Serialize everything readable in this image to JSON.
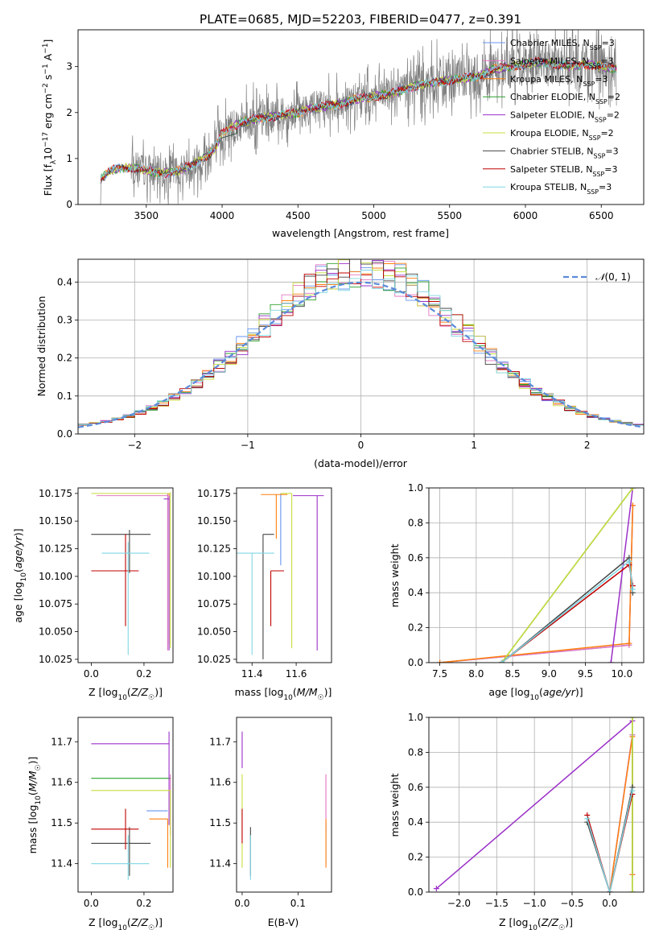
{
  "figure_title": "PLATE=0685, MJD=52203, FIBERID=0477, z=0.391",
  "series_styles": [
    {
      "name": "Chabrier MILES, N_SSP=3",
      "color": "#6495ed"
    },
    {
      "name": "Salpeter MILES, N_SSP=3",
      "color": "#e377c2"
    },
    {
      "name": "Kroupa MILES, N_SSP=3",
      "color": "#ff7f0e"
    },
    {
      "name": "Chabrier ELODIE, N_SSP=2",
      "color": "#2ca02c"
    },
    {
      "name": "Salpeter ELODIE, N_SSP=2",
      "color": "#9b30c8"
    },
    {
      "name": "Kroupa ELODIE, N_SSP=2",
      "color": "#c8dc3c"
    },
    {
      "name": "Chabrier STELIB, N_SSP=3",
      "color": "#444444"
    },
    {
      "name": "Salpeter STELIB, N_SSP=3",
      "color": "#c00000"
    },
    {
      "name": "Kroupa STELIB, N_SSP=3",
      "color": "#7fd6e3"
    }
  ],
  "chart_data": [
    {
      "id": "spectrum",
      "type": "line",
      "title": "PLATE=0685, MJD=52203, FIBERID=0477, z=0.391",
      "xlabel": "wavelength [Angstrom, rest frame]",
      "ylabel": "Flux [f_λ 10^-17 erg cm^-2 s^-1 A^-1]",
      "xlim": [
        3050,
        6780
      ],
      "ylim": [
        0,
        3.8
      ],
      "xticks": [
        3500,
        4000,
        4500,
        5000,
        5500,
        6000,
        6500
      ],
      "yticks": [
        0,
        1,
        2,
        3
      ],
      "legend_position": "top-right",
      "legend": [
        "Chabrier MILES, N_SSP=3",
        "Salpeter MILES, N_SSP=3",
        "Kroupa MILES, N_SSP=3",
        "Chabrier ELODIE, N_SSP=2",
        "Salpeter ELODIE, N_SSP=2",
        "Kroupa ELODIE, N_SSP=2",
        "Chabrier STELIB, N_SSP=3",
        "Salpeter STELIB, N_SSP=3",
        "Kroupa STELIB, N_SSP=3"
      ],
      "data_series": {
        "name": "data",
        "color": "#808080"
      },
      "model_continuum": {
        "x": [
          3200,
          3250,
          3300,
          3400,
          3500,
          3600,
          3700,
          3800,
          3850,
          3900,
          3950,
          4000,
          4100,
          4200,
          4300,
          4400,
          4500,
          4600,
          4700,
          4800,
          4900,
          5000,
          5100,
          5200,
          5300,
          5400,
          5500,
          5600,
          5700,
          5800,
          5900,
          6000,
          6100,
          6200,
          6300,
          6400,
          6500,
          6600
        ],
        "y": [
          0.55,
          0.7,
          0.78,
          0.8,
          0.75,
          0.68,
          0.72,
          0.85,
          0.95,
          1.05,
          1.2,
          1.55,
          1.75,
          1.85,
          1.9,
          1.95,
          2.0,
          2.1,
          2.15,
          2.2,
          2.3,
          2.35,
          2.4,
          2.5,
          2.6,
          2.65,
          2.7,
          2.75,
          2.8,
          2.95,
          3.0,
          3.05,
          3.1,
          3.05,
          3.0,
          3.05,
          3.0,
          2.95
        ]
      }
    },
    {
      "id": "residuals",
      "type": "line",
      "xlabel": "(data-model)/error",
      "ylabel": "Normed distribution",
      "xlim": [
        -2.5,
        2.5
      ],
      "ylim": [
        0,
        0.46
      ],
      "xticks": [
        -2,
        -1,
        0,
        1,
        2
      ],
      "yticks": [
        0.0,
        0.1,
        0.2,
        0.3,
        0.4
      ],
      "grid": true,
      "legend_position": "top-right",
      "legend": [
        "N(0,1)"
      ],
      "normal_curve": {
        "name": "N(0,1)",
        "mean": 0,
        "sigma": 1,
        "style": "dashed"
      },
      "histogram": {
        "bin_width": 0.1,
        "bin_start": -2.5,
        "shape_sigma": 1.0,
        "peak": 0.42
      }
    },
    {
      "id": "age-vs-Z",
      "type": "scatter",
      "xlabel": "Z [log10(Z/Z☉)]",
      "ylabel": "age  [log10(age/yr)]",
      "xlim": [
        -0.05,
        0.31
      ],
      "ylim": [
        10.022,
        10.18
      ],
      "xticks": [
        0.0,
        0.2
      ],
      "yticks": [
        10.025,
        10.05,
        10.075,
        10.1,
        10.125,
        10.15,
        10.175
      ],
      "points": [
        {
          "series": "Chabrier MILES, N_SSP=3",
          "x": 0.29,
          "y": 10.172,
          "xerr": [
            0.0,
            0.0
          ],
          "yerr": [
            0.138,
            0.002
          ]
        },
        {
          "series": "Salpeter MILES, N_SSP=3",
          "x": 0.29,
          "y": 10.173,
          "xerr": [
            0.27,
            0.0
          ],
          "yerr": [
            0.14,
            0.002
          ]
        },
        {
          "series": "Kroupa MILES, N_SSP=3",
          "x": 0.295,
          "y": 10.174,
          "xerr": [
            0.0,
            0.0
          ],
          "yerr": [
            0.135,
            0.001
          ]
        },
        {
          "series": "Chabrier ELODIE, N_SSP=2",
          "x": 0.3,
          "y": 10.175,
          "xerr": [
            0.0,
            0.0
          ],
          "yerr": [
            0.0,
            0.0
          ]
        },
        {
          "series": "Salpeter ELODIE, N_SSP=2",
          "x": 0.295,
          "y": 10.17,
          "xerr": [
            0.02,
            0.0
          ],
          "yerr": [
            0.137,
            0.003
          ]
        },
        {
          "series": "Kroupa ELODIE, N_SSP=2",
          "x": 0.3,
          "y": 10.175,
          "xerr": [
            0.3,
            0.0
          ],
          "yerr": [
            0.14,
            0.001
          ]
        },
        {
          "series": "Chabrier STELIB, N_SSP=3",
          "x": 0.145,
          "y": 10.138,
          "xerr": [
            0.145,
            0.08
          ],
          "yerr": [
            0.035,
            0.004
          ]
        },
        {
          "series": "Salpeter STELIB, N_SSP=3",
          "x": 0.13,
          "y": 10.105,
          "xerr": [
            0.13,
            0.05
          ],
          "yerr": [
            0.05,
            0.033
          ]
        },
        {
          "series": "Kroupa STELIB, N_SSP=3",
          "x": 0.14,
          "y": 10.121,
          "xerr": [
            0.1,
            0.08
          ],
          "yerr": [
            0.092,
            0.01
          ]
        }
      ]
    },
    {
      "id": "age-vs-mass",
      "type": "scatter",
      "xlabel": "mass [log10(M/M☉)]",
      "xlim": [
        11.33,
        11.76
      ],
      "ylim": [
        10.022,
        10.18
      ],
      "xticks": [
        11.4,
        11.6
      ],
      "yticks": [
        10.025,
        10.05,
        10.075,
        10.1,
        10.125,
        10.15,
        10.175
      ],
      "points": [
        {
          "series": "Chabrier MILES, N_SSP=3",
          "x": 11.53,
          "y": 10.11,
          "xerr": [
            0.0,
            0.0
          ],
          "yerr": [
            0.0,
            0.065
          ]
        },
        {
          "series": "Salpeter MILES, N_SSP=3",
          "x": 11.64,
          "y": 10.173,
          "xerr": [
            0.0,
            0.0
          ],
          "yerr": [
            0.0,
            0.0
          ]
        },
        {
          "series": "Kroupa MILES, N_SSP=3",
          "x": 11.51,
          "y": 10.174,
          "xerr": [
            0.07,
            0.05
          ],
          "yerr": [
            0.04,
            0.0
          ]
        },
        {
          "series": "Chabrier ELODIE, N_SSP=2",
          "x": 11.6,
          "y": 10.175,
          "xerr": [
            0.0,
            0.0
          ],
          "yerr": [
            0.0,
            0.0
          ]
        },
        {
          "series": "Salpeter ELODIE, N_SSP=2",
          "x": 11.695,
          "y": 10.173,
          "xerr": [
            0.11,
            0.03
          ],
          "yerr": [
            0.14,
            0.0
          ]
        },
        {
          "series": "Kroupa ELODIE, N_SSP=2",
          "x": 11.58,
          "y": 10.175,
          "xerr": [
            0.05,
            0.0
          ],
          "yerr": [
            0.14,
            0.0
          ]
        },
        {
          "series": "Chabrier STELIB, N_SSP=3",
          "x": 11.45,
          "y": 10.138,
          "xerr": [
            0.0,
            0.05
          ],
          "yerr": [
            0.113,
            0.0
          ]
        },
        {
          "series": "Salpeter STELIB, N_SSP=3",
          "x": 11.485,
          "y": 10.105,
          "xerr": [
            0.0,
            0.06
          ],
          "yerr": [
            0.05,
            0.0
          ]
        },
        {
          "series": "Kroupa STELIB, N_SSP=3",
          "x": 11.4,
          "y": 10.121,
          "xerr": [
            0.1,
            0.1
          ],
          "yerr": [
            0.092,
            0.0
          ]
        }
      ]
    },
    {
      "id": "mass-weight-vs-age",
      "type": "line",
      "xlabel": "age  [log10(age/yr)]",
      "ylabel": "mass weight",
      "xlim": [
        7.35,
        10.3
      ],
      "ylim": [
        0,
        1
      ],
      "xticks": [
        7.5,
        8.0,
        8.5,
        9.0,
        9.5,
        10.0
      ],
      "yticks": [
        0.0,
        0.2,
        0.4,
        0.6,
        0.8,
        1.0
      ],
      "grid": true,
      "series": [
        {
          "name": "Chabrier MILES, N_SSP=3",
          "x": [
            7.5,
            10.1,
            10.15
          ],
          "y": [
            0.0,
            0.1,
            0.9
          ]
        },
        {
          "name": "Salpeter MILES, N_SSP=3",
          "x": [
            7.5,
            10.1,
            10.15
          ],
          "y": [
            0.0,
            0.1,
            0.9
          ]
        },
        {
          "name": "Kroupa MILES, N_SSP=3",
          "x": [
            7.5,
            10.1,
            10.15
          ],
          "y": [
            0.0,
            0.11,
            0.9
          ]
        },
        {
          "name": "Chabrier ELODIE, N_SSP=2",
          "x": [
            8.35,
            10.15
          ],
          "y": [
            0.0,
            1.0
          ]
        },
        {
          "name": "Salpeter ELODIE, N_SSP=2",
          "x": [
            9.85,
            10.15
          ],
          "y": [
            0.0,
            1.0
          ]
        },
        {
          "name": "Kroupa ELODIE, N_SSP=2",
          "x": [
            8.35,
            10.15
          ],
          "y": [
            0.0,
            1.0
          ]
        },
        {
          "name": "Chabrier STELIB, N_SSP=3",
          "x": [
            8.35,
            10.1,
            10.15
          ],
          "y": [
            0.0,
            0.6,
            0.4
          ]
        },
        {
          "name": "Salpeter STELIB, N_SSP=3",
          "x": [
            8.35,
            10.1,
            10.15
          ],
          "y": [
            0.0,
            0.56,
            0.44
          ]
        },
        {
          "name": "Kroupa STELIB, N_SSP=3",
          "x": [
            8.35,
            10.1,
            10.15
          ],
          "y": [
            0.0,
            0.58,
            0.42
          ]
        }
      ]
    },
    {
      "id": "mass-vs-Z",
      "type": "scatter",
      "xlabel": "Z [log10(Z/Z☉)]",
      "ylabel": "mass [log10(M/M☉)]",
      "xlim": [
        -0.05,
        0.31
      ],
      "ylim": [
        11.33,
        11.76
      ],
      "xticks": [
        0.0,
        0.2
      ],
      "yticks": [
        11.4,
        11.5,
        11.6,
        11.7
      ],
      "points": [
        {
          "series": "Chabrier MILES, N_SSP=3",
          "x": 0.29,
          "y": 11.53,
          "xerr": [
            0.08,
            0.0
          ],
          "yerr": [
            0.0,
            0.0
          ]
        },
        {
          "series": "Salpeter MILES, N_SSP=3",
          "x": 0.3,
          "y": 11.5,
          "xerr": [
            0.0,
            0.0
          ],
          "yerr": [
            0.03,
            0.12
          ]
        },
        {
          "series": "Kroupa MILES, N_SSP=3",
          "x": 0.29,
          "y": 11.51,
          "xerr": [
            0.07,
            0.0
          ],
          "yerr": [
            0.12,
            0.0
          ]
        },
        {
          "series": "Chabrier ELODIE, N_SSP=2",
          "x": 0.3,
          "y": 11.61,
          "xerr": [
            0.3,
            0.0
          ],
          "yerr": [
            0.0,
            0.0
          ]
        },
        {
          "series": "Salpeter ELODIE, N_SSP=2",
          "x": 0.295,
          "y": 11.695,
          "xerr": [
            0.295,
            0.0
          ],
          "yerr": [
            0.2,
            0.03
          ]
        },
        {
          "series": "Kroupa ELODIE, N_SSP=2",
          "x": 0.3,
          "y": 11.58,
          "xerr": [
            0.3,
            0.0
          ],
          "yerr": [
            0.19,
            0.0
          ]
        },
        {
          "series": "Chabrier STELIB, N_SSP=3",
          "x": 0.145,
          "y": 11.45,
          "xerr": [
            0.145,
            0.08
          ],
          "yerr": [
            0.08,
            0.04
          ]
        },
        {
          "series": "Salpeter STELIB, N_SSP=3",
          "x": 0.13,
          "y": 11.485,
          "xerr": [
            0.13,
            0.05
          ],
          "yerr": [
            0.05,
            0.05
          ]
        },
        {
          "series": "Kroupa STELIB, N_SSP=3",
          "x": 0.14,
          "y": 11.4,
          "xerr": [
            0.14,
            0.08
          ],
          "yerr": [
            0.04,
            0.07
          ]
        }
      ]
    },
    {
      "id": "mass-vs-EBV",
      "type": "scatter",
      "xlabel": "E(B-V)",
      "xlim": [
        -0.01,
        0.16
      ],
      "ylim": [
        11.33,
        11.76
      ],
      "xticks": [
        0.0,
        0.1
      ],
      "yticks": [
        11.4,
        11.5,
        11.6,
        11.7
      ],
      "points": [
        {
          "series": "Chabrier MILES, N_SSP=3",
          "x": 0.15,
          "y": 11.5,
          "xerr": [
            0,
            0
          ],
          "yerr": [
            0.1,
            0.0
          ]
        },
        {
          "series": "Salpeter MILES, N_SSP=3",
          "x": 0.15,
          "y": 11.6,
          "xerr": [
            0,
            0
          ],
          "yerr": [
            0.12,
            0.02
          ]
        },
        {
          "series": "Kroupa MILES, N_SSP=3",
          "x": 0.15,
          "y": 11.51,
          "xerr": [
            0,
            0
          ],
          "yerr": [
            0.12,
            0.0
          ]
        },
        {
          "series": "Chabrier ELODIE, N_SSP=2",
          "x": 0.0,
          "y": 11.61,
          "xerr": [
            0,
            0
          ],
          "yerr": [
            0.0,
            0.0
          ]
        },
        {
          "series": "Salpeter ELODIE, N_SSP=2",
          "x": 0.0,
          "y": 11.695,
          "xerr": [
            0,
            0
          ],
          "yerr": [
            0.06,
            0.03
          ]
        },
        {
          "series": "Kroupa ELODIE, N_SSP=2",
          "x": 0.0,
          "y": 11.55,
          "xerr": [
            0,
            0
          ],
          "yerr": [
            0.16,
            0.07
          ]
        },
        {
          "series": "Chabrier STELIB, N_SSP=3",
          "x": 0.015,
          "y": 11.45,
          "xerr": [
            0,
            0
          ],
          "yerr": [
            0.08,
            0.04
          ]
        },
        {
          "series": "Salpeter STELIB, N_SSP=3",
          "x": 0.0,
          "y": 11.49,
          "xerr": [
            0,
            0
          ],
          "yerr": [
            0.04,
            0.045
          ]
        },
        {
          "series": "Kroupa STELIB, N_SSP=3",
          "x": 0.015,
          "y": 11.4,
          "xerr": [
            0,
            0
          ],
          "yerr": [
            0.04,
            0.07
          ]
        }
      ]
    },
    {
      "id": "mass-weight-vs-Z",
      "type": "line",
      "xlabel": "Z [log10(Z/Z☉)]",
      "ylabel": "mass weight",
      "xlim": [
        -2.4,
        0.45
      ],
      "ylim": [
        0,
        1
      ],
      "xticks": [
        -2.0,
        -1.5,
        -1.0,
        -0.5,
        0.0
      ],
      "yticks": [
        0.0,
        0.2,
        0.4,
        0.6,
        0.8,
        1.0
      ],
      "grid": true,
      "series": [
        {
          "name": "Chabrier MILES, N_SSP=3",
          "x": [
            0.0,
            0.3,
            0.3
          ],
          "y": [
            0.0,
            0.9,
            0.1
          ]
        },
        {
          "name": "Salpeter MILES, N_SSP=3",
          "x": [
            0.0,
            0.3,
            0.3
          ],
          "y": [
            0.0,
            0.9,
            0.1
          ]
        },
        {
          "name": "Kroupa MILES, N_SSP=3",
          "x": [
            0.0,
            0.3,
            0.3
          ],
          "y": [
            0.0,
            0.89,
            0.1
          ]
        },
        {
          "name": "Chabrier ELODIE, N_SSP=2",
          "x": [
            0.3,
            0.3
          ],
          "y": [
            0.0,
            1.0
          ]
        },
        {
          "name": "Salpeter ELODIE, N_SSP=2",
          "x": [
            -2.3,
            0.3
          ],
          "y": [
            0.02,
            0.98
          ]
        },
        {
          "name": "Kroupa ELODIE, N_SSP=2",
          "x": [
            0.3,
            0.3
          ],
          "y": [
            0.0,
            1.0
          ]
        },
        {
          "name": "Chabrier STELIB, N_SSP=3",
          "x": [
            -0.3,
            0.0,
            0.3
          ],
          "y": [
            0.4,
            0.0,
            0.6
          ]
        },
        {
          "name": "Salpeter STELIB, N_SSP=3",
          "x": [
            -0.3,
            0.0,
            0.3
          ],
          "y": [
            0.44,
            0.0,
            0.56
          ]
        },
        {
          "name": "Kroupa STELIB, N_SSP=3",
          "x": [
            -0.3,
            0.0,
            0.3
          ],
          "y": [
            0.42,
            0.0,
            0.58
          ]
        }
      ]
    }
  ]
}
